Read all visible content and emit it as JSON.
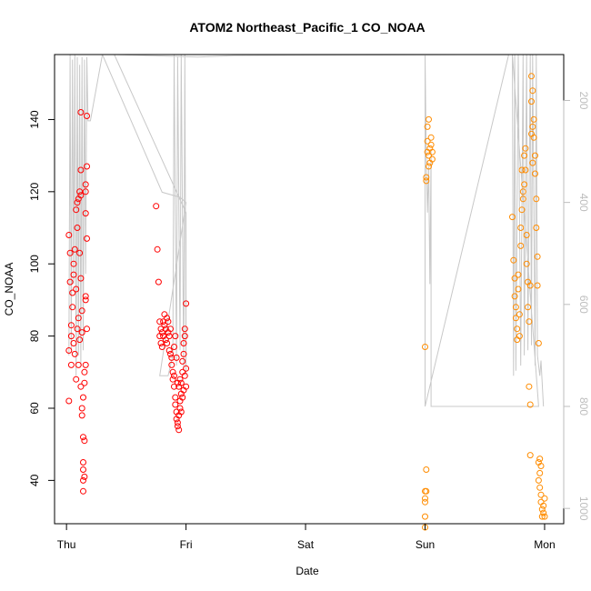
{
  "chart_data": {
    "type": "scatter",
    "title": "ATOM2 Northeast_Pacific_1 CO_NOAA",
    "xlabel": "Date",
    "ylabel": "CO_NOAA",
    "x_tick_labels": [
      "Thu",
      "Fri",
      "Sat",
      "Sun",
      "Mon"
    ],
    "y_ticks": [
      40,
      60,
      80,
      100,
      120,
      140
    ],
    "y_ticks_right": [
      200,
      400,
      600,
      800,
      1000
    ],
    "xlim": [
      -0.1,
      4.16
    ],
    "ylim": [
      28,
      158
    ],
    "ylim_right": [
      1030,
      110
    ],
    "grid": false,
    "colors": {
      "flight_1": "#ff0000",
      "flight_2": "#ff8c00",
      "altitude_trace": "#c8c8c8"
    },
    "series": [
      {
        "color": "#ff0000",
        "points": [
          [
            0.02,
            76
          ],
          [
            0.02,
            108
          ],
          [
            0.02,
            62
          ],
          [
            0.03,
            103
          ],
          [
            0.03,
            95
          ],
          [
            0.04,
            72
          ],
          [
            0.04,
            80
          ],
          [
            0.04,
            83
          ],
          [
            0.05,
            92
          ],
          [
            0.05,
            88
          ],
          [
            0.06,
            97
          ],
          [
            0.06,
            78
          ],
          [
            0.06,
            100
          ],
          [
            0.07,
            104
          ],
          [
            0.07,
            75
          ],
          [
            0.08,
            115
          ],
          [
            0.08,
            68
          ],
          [
            0.08,
            93
          ],
          [
            0.09,
            117
          ],
          [
            0.09,
            110
          ],
          [
            0.09,
            82
          ],
          [
            0.1,
            118
          ],
          [
            0.1,
            85
          ],
          [
            0.1,
            72
          ],
          [
            0.11,
            120
          ],
          [
            0.11,
            103
          ],
          [
            0.11,
            79
          ],
          [
            0.12,
            119
          ],
          [
            0.12,
            96
          ],
          [
            0.12,
            66
          ],
          [
            0.12,
            142
          ],
          [
            0.12,
            126
          ],
          [
            0.13,
            60
          ],
          [
            0.13,
            58
          ],
          [
            0.13,
            87
          ],
          [
            0.13,
            81
          ],
          [
            0.14,
            63
          ],
          [
            0.14,
            52
          ],
          [
            0.14,
            45
          ],
          [
            0.14,
            43
          ],
          [
            0.14,
            40
          ],
          [
            0.14,
            37
          ],
          [
            0.15,
            41
          ],
          [
            0.15,
            51
          ],
          [
            0.15,
            70
          ],
          [
            0.15,
            67
          ],
          [
            0.16,
            91
          ],
          [
            0.16,
            90
          ],
          [
            0.16,
            120
          ],
          [
            0.16,
            122
          ],
          [
            0.16,
            114
          ],
          [
            0.17,
            127
          ],
          [
            0.17,
            141
          ],
          [
            0.17,
            107
          ],
          [
            0.17,
            82
          ],
          [
            0.16,
            72
          ],
          [
            0.75,
            116
          ],
          [
            0.76,
            104
          ],
          [
            0.77,
            95
          ],
          [
            0.78,
            84
          ],
          [
            0.78,
            80
          ],
          [
            0.79,
            82
          ],
          [
            0.79,
            78
          ],
          [
            0.8,
            77
          ],
          [
            0.8,
            81
          ],
          [
            0.81,
            84
          ],
          [
            0.81,
            80
          ],
          [
            0.82,
            86
          ],
          [
            0.82,
            83
          ],
          [
            0.83,
            79
          ],
          [
            0.83,
            82
          ],
          [
            0.84,
            85
          ],
          [
            0.84,
            78
          ],
          [
            0.85,
            81
          ],
          [
            0.85,
            84
          ],
          [
            0.86,
            80
          ],
          [
            0.86,
            76
          ],
          [
            0.87,
            82
          ],
          [
            0.87,
            75
          ],
          [
            0.88,
            74
          ],
          [
            0.88,
            72
          ],
          [
            0.89,
            70
          ],
          [
            0.89,
            68
          ],
          [
            0.9,
            66
          ],
          [
            0.9,
            69
          ],
          [
            0.91,
            63
          ],
          [
            0.91,
            61
          ],
          [
            0.92,
            59
          ],
          [
            0.92,
            57
          ],
          [
            0.93,
            56
          ],
          [
            0.93,
            55
          ],
          [
            0.94,
            54
          ],
          [
            0.94,
            58
          ],
          [
            0.95,
            60
          ],
          [
            0.95,
            62
          ],
          [
            0.96,
            64
          ],
          [
            0.96,
            67
          ],
          [
            0.97,
            70
          ],
          [
            0.97,
            73
          ],
          [
            0.98,
            75
          ],
          [
            0.98,
            78
          ],
          [
            0.99,
            80
          ],
          [
            0.99,
            82
          ],
          [
            1.0,
            89
          ],
          [
            1.0,
            71
          ],
          [
            1.0,
            66
          ],
          [
            0.9,
            77
          ],
          [
            0.91,
            80
          ],
          [
            0.92,
            74
          ],
          [
            0.93,
            67
          ],
          [
            0.94,
            66
          ],
          [
            0.95,
            68
          ],
          [
            0.96,
            59
          ],
          [
            0.97,
            63
          ],
          [
            0.98,
            65
          ],
          [
            0.99,
            69
          ]
        ]
      },
      {
        "color": "#ff8c00",
        "points": [
          [
            3.0,
            77
          ],
          [
            3.0,
            37
          ],
          [
            3.0,
            35
          ],
          [
            3.0,
            34
          ],
          [
            3.0,
            30
          ],
          [
            3.0,
            27
          ],
          [
            3.01,
            124
          ],
          [
            3.01,
            123
          ],
          [
            3.01,
            43
          ],
          [
            3.01,
            37
          ],
          [
            3.02,
            131
          ],
          [
            3.02,
            138
          ],
          [
            3.02,
            134
          ],
          [
            3.03,
            140
          ],
          [
            3.03,
            127
          ],
          [
            3.03,
            130
          ],
          [
            3.04,
            128
          ],
          [
            3.04,
            132
          ],
          [
            3.05,
            133
          ],
          [
            3.05,
            135
          ],
          [
            3.06,
            129
          ],
          [
            3.06,
            131
          ],
          [
            3.73,
            113
          ],
          [
            3.74,
            101
          ],
          [
            3.75,
            96
          ],
          [
            3.75,
            91
          ],
          [
            3.76,
            88
          ],
          [
            3.76,
            85
          ],
          [
            3.77,
            82
          ],
          [
            3.77,
            79
          ],
          [
            3.78,
            97
          ],
          [
            3.78,
            93
          ],
          [
            3.79,
            86
          ],
          [
            3.79,
            80
          ],
          [
            3.8,
            105
          ],
          [
            3.8,
            110
          ],
          [
            3.81,
            115
          ],
          [
            3.81,
            126
          ],
          [
            3.82,
            118
          ],
          [
            3.82,
            120
          ],
          [
            3.83,
            122
          ],
          [
            3.83,
            130
          ],
          [
            3.84,
            126
          ],
          [
            3.84,
            132
          ],
          [
            3.85,
            108
          ],
          [
            3.85,
            100
          ],
          [
            3.86,
            95
          ],
          [
            3.86,
            88
          ],
          [
            3.87,
            84
          ],
          [
            3.87,
            66
          ],
          [
            3.88,
            61
          ],
          [
            3.88,
            47
          ],
          [
            3.89,
            145
          ],
          [
            3.89,
            152
          ],
          [
            3.9,
            148
          ],
          [
            3.9,
            138
          ],
          [
            3.91,
            140
          ],
          [
            3.91,
            135
          ],
          [
            3.92,
            130
          ],
          [
            3.92,
            125
          ],
          [
            3.93,
            118
          ],
          [
            3.93,
            110
          ],
          [
            3.94,
            102
          ],
          [
            3.94,
            94
          ],
          [
            3.95,
            78
          ],
          [
            3.95,
            45
          ],
          [
            3.96,
            42
          ],
          [
            3.96,
            38
          ],
          [
            3.97,
            36
          ],
          [
            3.97,
            34
          ],
          [
            3.98,
            32
          ],
          [
            3.98,
            30
          ],
          [
            3.99,
            31
          ],
          [
            3.99,
            33
          ],
          [
            4.0,
            35
          ],
          [
            4.0,
            30
          ],
          [
            3.96,
            46
          ],
          [
            3.97,
            44
          ],
          [
            3.95,
            40
          ],
          [
            3.89,
            136
          ],
          [
            3.9,
            128
          ],
          [
            3.88,
            94
          ]
        ]
      }
    ]
  }
}
